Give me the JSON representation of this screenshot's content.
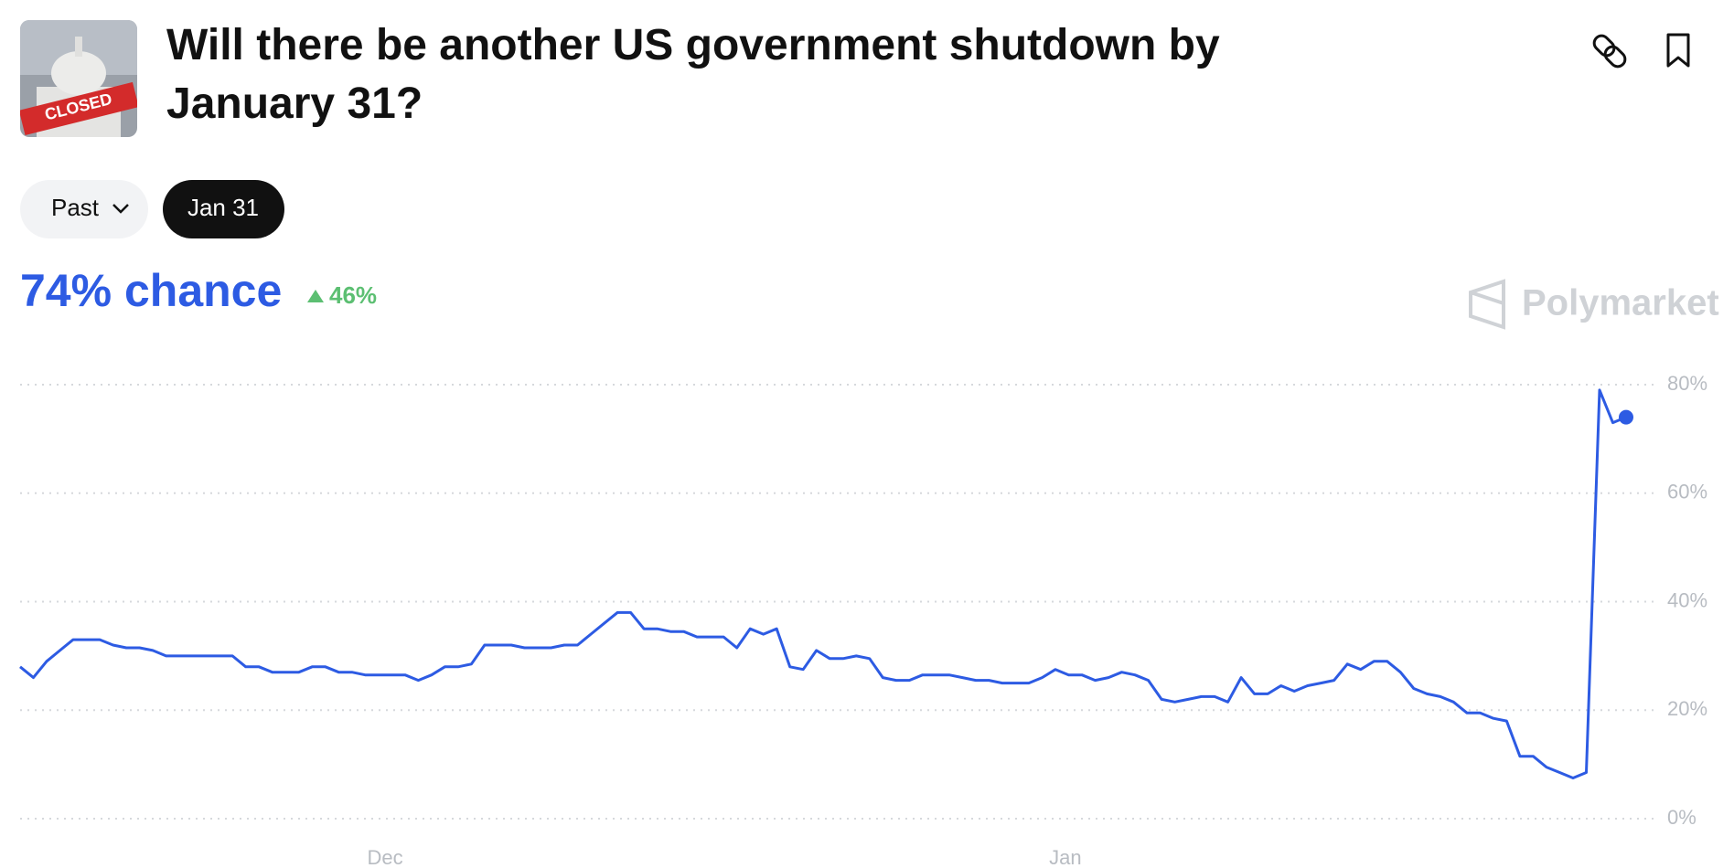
{
  "header": {
    "title": "Will there be another US government shutdown by January 31?",
    "image_label": "CLOSED"
  },
  "filters": {
    "past": "Past",
    "active": "Jan 31"
  },
  "summary": {
    "chance": "74% chance",
    "change": "46%"
  },
  "brand": "Polymarket",
  "chart_data": {
    "type": "line",
    "color": "#2d5be3",
    "values": [
      28,
      26,
      29,
      31,
      33,
      33,
      33,
      32,
      31.5,
      31.5,
      31,
      30,
      30,
      30,
      30,
      30,
      30,
      28,
      28,
      27,
      27,
      27,
      28,
      28,
      27,
      27,
      26.5,
      26.5,
      26.5,
      26.5,
      25.5,
      26.5,
      28,
      28,
      28.5,
      32,
      32,
      32,
      31.5,
      31.5,
      31.5,
      32,
      32,
      34,
      36,
      38,
      38,
      35,
      35,
      34.5,
      34.5,
      33.5,
      33.5,
      33.5,
      31.5,
      35,
      34,
      35,
      28,
      27.5,
      31,
      29.5,
      29.5,
      30,
      29.5,
      26,
      25.5,
      25.5,
      26.5,
      26.5,
      26.5,
      26,
      25.5,
      25.5,
      25,
      25,
      25,
      26,
      27.5,
      26.5,
      26.5,
      25.5,
      26,
      27,
      26.5,
      25.5,
      22,
      21.5,
      22,
      22.5,
      22.5,
      21.5,
      26,
      23,
      23,
      24.5,
      23.5,
      24.5,
      25,
      25.5,
      28.5,
      27.5,
      29,
      29,
      27,
      24,
      23,
      22.5,
      21.5,
      19.5,
      19.5,
      18.5,
      18,
      11.5,
      11.5,
      9.5,
      8.5,
      7.5,
      8.5,
      79,
      73,
      74
    ],
    "xlim": [
      0,
      121
    ],
    "xticks": [
      {
        "value": 27.5,
        "label": "Dec"
      },
      {
        "value": 78.75,
        "label": "Jan"
      }
    ],
    "ylim": [
      0,
      80
    ],
    "yticks": [
      {
        "value": 0,
        "label": "0%"
      },
      {
        "value": 20,
        "label": "20%"
      },
      {
        "value": 40,
        "label": "40%"
      },
      {
        "value": 60,
        "label": "60%"
      },
      {
        "value": 80,
        "label": "80%"
      }
    ],
    "grid": true,
    "yaxis_side": "right"
  }
}
